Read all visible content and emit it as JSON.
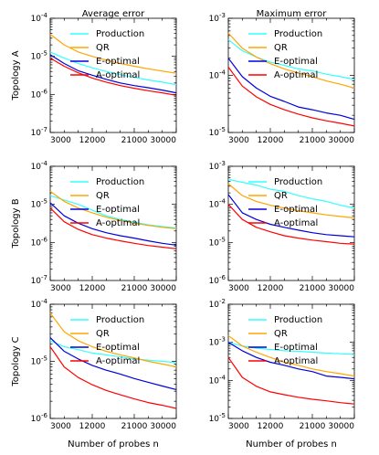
{
  "chart_data": {
    "type": "line",
    "x": [
      3000,
      6000,
      9000,
      12000,
      15000,
      18000,
      21000,
      24000,
      27000,
      30000
    ],
    "xticks": [
      "3000",
      "12000",
      "21000",
      "30000"
    ],
    "column_titles": [
      "Average error",
      "Maximum error"
    ],
    "row_labels": [
      "Topology A",
      "Topology B",
      "Topology C"
    ],
    "xlabel": "Number of probes n",
    "yscale": "log",
    "legend_location": "top-right",
    "series_styles": [
      {
        "name": "Production",
        "color": "#33ffff"
      },
      {
        "name": "QR",
        "color": "#ffa500"
      },
      {
        "name": "E-optimal",
        "color": "#0000dd"
      },
      {
        "name": "A-optimal",
        "color": "#ff0000"
      }
    ],
    "panels": [
      {
        "row": 0,
        "col": 0,
        "ylim": [
          1e-07,
          0.0001
        ],
        "yticks": [
          "10^-7",
          "10^-6",
          "10^-5",
          "10^-4"
        ],
        "series": [
          {
            "name": "Production",
            "values": [
              1.3e-05,
              9e-06,
              6.5e-06,
              5e-06,
              4e-06,
              3.3e-06,
              2.8e-06,
              2.4e-06,
              2.1e-06,
              1.8e-06
            ]
          },
          {
            "name": "QR",
            "values": [
              3.8e-05,
              2e-05,
              1.3e-05,
              1e-05,
              8e-06,
              6.5e-06,
              5.5e-06,
              4.7e-06,
              4.1e-06,
              3.6e-06
            ]
          },
          {
            "name": "E-optimal",
            "values": [
              1.1e-05,
              6.5e-06,
              4.2e-06,
              3.2e-06,
              2.5e-06,
              2e-06,
              1.7e-06,
              1.5e-06,
              1.3e-06,
              1.1e-06
            ]
          },
          {
            "name": "A-optimal",
            "values": [
              9e-06,
              5.5e-06,
              3.7e-06,
              2.7e-06,
              2.1e-06,
              1.7e-06,
              1.45e-06,
              1.25e-06,
              1.1e-06,
              9.5e-07
            ]
          }
        ]
      },
      {
        "row": 0,
        "col": 1,
        "ylim": [
          1e-05,
          0.001
        ],
        "yticks": [
          "10^-5",
          "10^-4",
          "10^-3"
        ],
        "series": [
          {
            "name": "Production",
            "values": [
              0.00042,
              0.00027,
              0.00021,
              0.00017,
              0.00015,
              0.00013,
              0.00012,
              0.000105,
              9.5e-05,
              8.5e-05
            ]
          },
          {
            "name": "QR",
            "values": [
              0.00055,
              0.0003,
              0.00021,
              0.00016,
              0.00013,
              0.00011,
              9.5e-05,
              8e-05,
              7e-05,
              6e-05
            ]
          },
          {
            "name": "E-optimal",
            "values": [
              0.0002,
              9.5e-05,
              6e-05,
              4.3e-05,
              3.5e-05,
              2.8e-05,
              2.5e-05,
              2.2e-05,
              2e-05,
              1.7e-05
            ]
          },
          {
            "name": "A-optimal",
            "values": [
              0.00014,
              6.5e-05,
              4.2e-05,
              3.1e-05,
              2.5e-05,
              2.1e-05,
              1.8e-05,
              1.6e-05,
              1.45e-05,
              1.3e-05
            ]
          }
        ]
      },
      {
        "row": 1,
        "col": 0,
        "ylim": [
          1e-07,
          0.0001
        ],
        "yticks": [
          "10^-7",
          "10^-6",
          "10^-5",
          "10^-4"
        ],
        "series": [
          {
            "name": "Production",
            "values": [
              1.7e-05,
              1.3e-05,
              1e-05,
              7e-06,
              5e-06,
              4e-06,
              3.4e-06,
              2.9e-06,
              2.6e-06,
              2.4e-06
            ]
          },
          {
            "name": "QR",
            "values": [
              2.2e-05,
              1.2e-05,
              8e-06,
              6e-06,
              4.6e-06,
              3.8e-06,
              3.2e-06,
              2.8e-06,
              2.5e-06,
              2.3e-06
            ]
          },
          {
            "name": "E-optimal",
            "values": [
              1.1e-05,
              5e-06,
              3.2e-06,
              2.3e-06,
              1.8e-06,
              1.5e-06,
              1.3e-06,
              1.1e-06,
              9.5e-07,
              8.5e-07
            ]
          },
          {
            "name": "A-optimal",
            "values": [
              8e-06,
              3.5e-06,
              2.2e-06,
              1.6e-06,
              1.3e-06,
              1.1e-06,
              9.5e-07,
              8.3e-07,
              7.5e-07,
              6.8e-07
            ]
          }
        ]
      },
      {
        "row": 1,
        "col": 1,
        "ylim": [
          1e-06,
          0.001
        ],
        "yticks": [
          "10^-6",
          "10^-5",
          "10^-4",
          "10^-3"
        ],
        "series": [
          {
            "name": "Production",
            "values": [
              0.00045,
              0.00038,
              0.00032,
              0.00025,
              0.00022,
              0.00017,
              0.00014,
              0.00012,
              9.5e-05,
              8e-05
            ]
          },
          {
            "name": "QR",
            "values": [
              0.00035,
              0.00017,
              0.00012,
              9.5e-05,
              8e-05,
              6.8e-05,
              6e-05,
              5.3e-05,
              4.8e-05,
              4.4e-05
            ]
          },
          {
            "name": "E-optimal",
            "values": [
              0.00018,
              6e-05,
              4e-05,
              3e-05,
              2.5e-05,
              2.1e-05,
              1.8e-05,
              1.6e-05,
              1.5e-05,
              1.4e-05
            ]
          },
          {
            "name": "A-optimal",
            "values": [
              0.0001,
              4e-05,
              2.5e-05,
              1.9e-05,
              1.5e-05,
              1.3e-05,
              1.15e-05,
              1.05e-05,
              9.5e-06,
              9e-06
            ]
          }
        ]
      },
      {
        "row": 2,
        "col": 0,
        "ylim": [
          1e-06,
          0.0001
        ],
        "yticks": [
          "10^-6",
          "10^-5",
          "10^-4"
        ],
        "series": [
          {
            "name": "Production",
            "values": [
              2.3e-05,
              1.8e-05,
              1.6e-05,
              1.4e-05,
              1.3e-05,
              1.2e-05,
              1.1e-05,
              1.05e-05,
              1e-05,
              9.5e-06
            ]
          },
          {
            "name": "QR",
            "values": [
              7e-05,
              3.3e-05,
              2.3e-05,
              1.8e-05,
              1.5e-05,
              1.3e-05,
              1.15e-05,
              1e-05,
              9e-06,
              8e-06
            ]
          },
          {
            "name": "E-optimal",
            "values": [
              2.6e-05,
              1.5e-05,
              1.1e-05,
              8.5e-06,
              7e-06,
              6e-06,
              5e-06,
              4.3e-06,
              3.7e-06,
              3.2e-06
            ]
          },
          {
            "name": "A-optimal",
            "values": [
              1.8e-05,
              8e-06,
              5.2e-06,
              3.9e-06,
              3.1e-06,
              2.6e-06,
              2.2e-06,
              1.9e-06,
              1.7e-06,
              1.5e-06
            ]
          }
        ]
      },
      {
        "row": 2,
        "col": 1,
        "ylim": [
          1e-05,
          0.01
        ],
        "yticks": [
          "10^-5",
          "10^-4",
          "10^-3",
          "10^-2"
        ],
        "series": [
          {
            "name": "Production",
            "values": [
              0.001,
              0.0008,
              0.0007,
              0.00065,
              0.0006,
              0.00058,
              0.00055,
              0.00052,
              0.0005,
              0.00048
            ]
          },
          {
            "name": "QR",
            "values": [
              0.0015,
              0.0008,
              0.00055,
              0.0004,
              0.0003,
              0.00025,
              0.0002,
              0.00017,
              0.00015,
              0.00013
            ]
          },
          {
            "name": "E-optimal",
            "values": [
              0.001,
              0.0006,
              0.0004,
              0.0003,
              0.00025,
              0.0002,
              0.00017,
              0.00013,
              0.00012,
              0.00011
            ]
          },
          {
            "name": "A-optimal",
            "values": [
              0.0004,
              0.00012,
              7e-05,
              5e-05,
              4.2e-05,
              3.6e-05,
              3.2e-05,
              2.9e-05,
              2.6e-05,
              2.4e-05
            ]
          }
        ]
      }
    ]
  }
}
